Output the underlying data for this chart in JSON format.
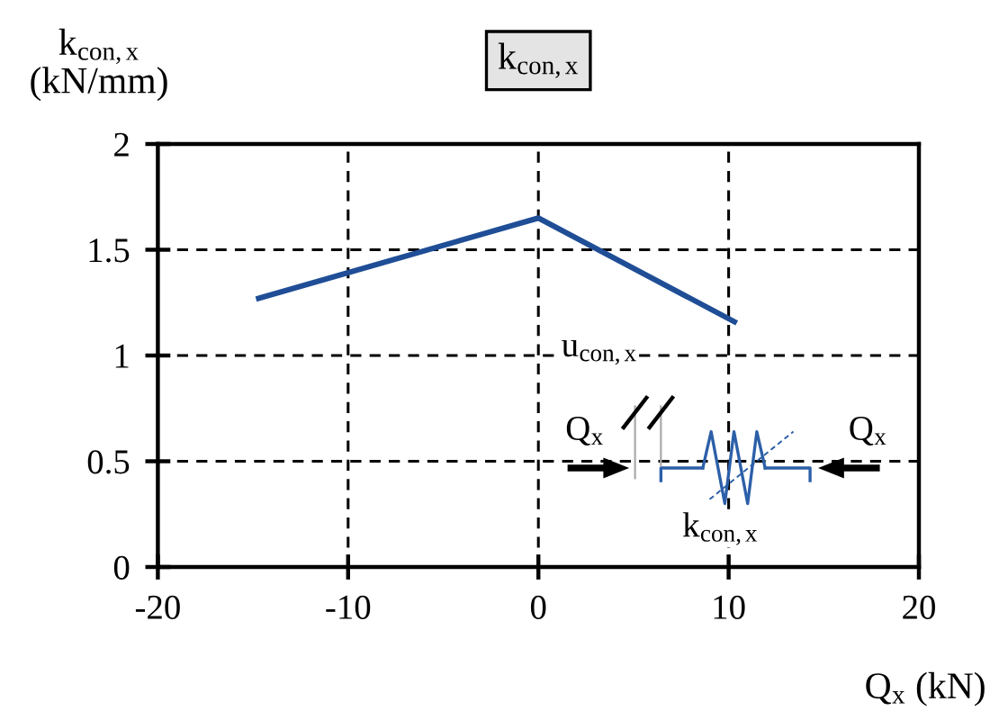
{
  "chart_data": {
    "type": "line",
    "title": "k$_{con,x}$",
    "ylabel": "k$_{con,x}$\n(kN/mm)",
    "xlabel": "Q$_{x}$ (kN)",
    "x": [
      -14.7,
      0,
      10.3
    ],
    "series": [
      {
        "color": "#1f4e96",
        "values": [
          1.27,
          1.65,
          1.16
        ]
      }
    ],
    "xlim": [
      -20,
      20
    ],
    "xticks": [
      -20,
      -10,
      0,
      10,
      20
    ],
    "ylim": [
      0,
      2
    ],
    "yticks": [
      0,
      0.5,
      1,
      1.5,
      2
    ],
    "grid": true,
    "line_style": "solid",
    "annotations": [
      "u$_{con,x}$",
      "Q$_{x}$",
      "Q$_{x}$",
      "k$_{con,x}$"
    ]
  }
}
